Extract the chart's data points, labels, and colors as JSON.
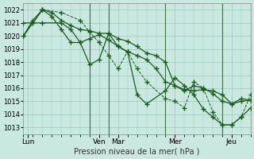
{
  "background_color": "#c8e8e0",
  "grid_color": "#a0c8c0",
  "line_color": "#1a5c1a",
  "xlabel": "Pression niveau de la mer( hPa )",
  "ylim": [
    1012.5,
    1022.5
  ],
  "yticks": [
    1013,
    1014,
    1015,
    1016,
    1017,
    1018,
    1019,
    1020,
    1021,
    1022
  ],
  "xlim": [
    0,
    24
  ],
  "day_ticks": [
    0.5,
    8,
    10,
    16,
    22
  ],
  "day_labels": [
    "Lun",
    "Ven",
    "Mar",
    "Mer",
    "Jeu"
  ],
  "vlines": [
    7,
    9,
    15,
    21
  ],
  "vline_color": "#447744",
  "lines": [
    {
      "x": [
        0,
        1,
        2,
        3,
        4,
        5,
        6,
        7,
        8,
        9,
        10,
        11,
        12,
        13,
        14,
        15,
        16,
        17,
        18,
        19,
        20,
        21,
        22,
        23,
        24
      ],
      "y": [
        1020.0,
        1021.0,
        1022.0,
        1021.8,
        1021.2,
        1020.8,
        1020.5,
        1020.4,
        1020.2,
        1020.2,
        1019.8,
        1019.6,
        1019.2,
        1018.7,
        1018.5,
        1018.0,
        1016.2,
        1015.9,
        1015.8,
        1015.9,
        1015.8,
        1015.5,
        1014.8,
        1015.0,
        1015.1
      ],
      "style": "-",
      "marker": "+",
      "markersize": 4,
      "linewidth": 0.9
    },
    {
      "x": [
        0,
        1,
        2,
        3,
        4,
        5,
        6,
        7,
        8,
        9,
        10,
        11,
        12,
        13,
        14,
        15,
        16,
        17,
        18,
        19,
        20,
        21,
        22,
        23,
        24
      ],
      "y": [
        1020.0,
        1021.2,
        1022.0,
        1021.5,
        1020.5,
        1019.5,
        1019.5,
        1019.8,
        1020.1,
        1019.7,
        1019.2,
        1018.8,
        1018.5,
        1018.2,
        1017.5,
        1016.5,
        1016.2,
        1015.8,
        1016.2,
        1016.0,
        1015.6,
        1015.0,
        1014.8,
        1015.2,
        1015.1
      ],
      "style": "-",
      "marker": "+",
      "markersize": 4,
      "linewidth": 0.9
    },
    {
      "x": [
        0,
        2,
        4,
        5,
        6,
        7,
        8,
        9,
        10,
        11,
        12,
        13,
        15,
        16,
        17,
        18,
        19,
        20,
        21,
        22,
        23,
        24
      ],
      "y": [
        1021.0,
        1021.0,
        1021.0,
        1020.5,
        1019.5,
        1017.8,
        1018.2,
        1020.2,
        1019.2,
        1018.8,
        1015.5,
        1014.8,
        1015.8,
        1016.8,
        1016.2,
        1015.5,
        1014.4,
        1013.8,
        1013.2,
        1013.2,
        1013.8,
        1014.5
      ],
      "style": "-",
      "marker": "+",
      "markersize": 4,
      "linewidth": 0.9
    },
    {
      "x": [
        0,
        2,
        4,
        6,
        7,
        8,
        9,
        10,
        11,
        12,
        13,
        15,
        16,
        17,
        18,
        19,
        20,
        21,
        22,
        23,
        24
      ],
      "y": [
        1020.0,
        1022.0,
        1021.8,
        1021.2,
        1020.3,
        1019.5,
        1018.5,
        1017.5,
        1018.8,
        1017.5,
        1016.5,
        1015.2,
        1015.0,
        1014.5,
        1016.5,
        1016.0,
        1014.2,
        1013.2,
        1013.2,
        1013.8,
        1015.5
      ],
      "style": "--",
      "marker": "+",
      "markersize": 4,
      "linewidth": 0.7
    }
  ]
}
